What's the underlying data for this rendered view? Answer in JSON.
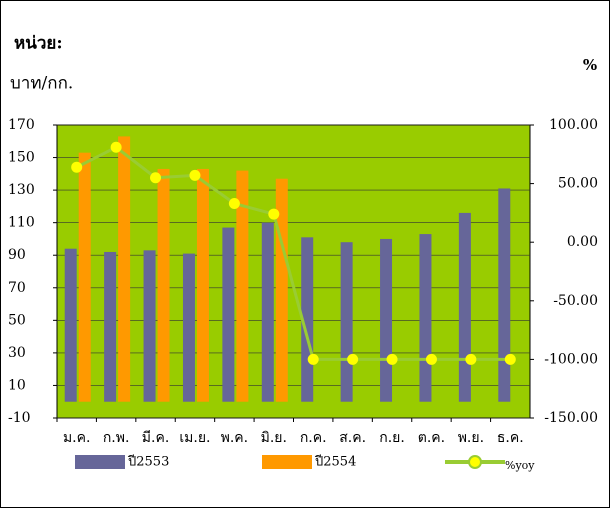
{
  "chart_data": {
    "type": "bar",
    "unit_label": "หน่วย:",
    "y_label": "บาท/กก.",
    "y2_label": "%",
    "categories": [
      "ม.ค.",
      "ก.พ.",
      "มี.ค.",
      "เม.ย.",
      "พ.ค.",
      "มิ.ย.",
      "ก.ค.",
      "ส.ค.",
      "ก.ย.",
      "ต.ค.",
      "พ.ย.",
      "ธ.ค."
    ],
    "series": [
      {
        "name": "ปี2553",
        "color": "#666699",
        "values": [
          94,
          92,
          93,
          91,
          107,
          110,
          101,
          98,
          100,
          103,
          116,
          131
        ]
      },
      {
        "name": "ปี2554",
        "color": "#ff9900",
        "values": [
          153,
          163,
          143,
          143,
          142,
          137,
          null,
          null,
          null,
          null,
          null,
          null
        ]
      },
      {
        "name": "%yoy",
        "color": "#99cc33",
        "marker_color": "#ffff00",
        "axis": "y2",
        "type": "line",
        "values": [
          64,
          81,
          55,
          57,
          33,
          24,
          -100,
          -100,
          -100,
          -100,
          -100,
          -100
        ]
      }
    ],
    "ylim": [
      -10,
      170
    ],
    "yticks": [
      -10,
      10,
      30,
      50,
      70,
      90,
      110,
      130,
      150,
      170
    ],
    "y2lim": [
      -150,
      100
    ],
    "y2ticks": [
      {
        "value": -150,
        "label": "-150.00"
      },
      {
        "value": -100,
        "label": "-100.00"
      },
      {
        "value": -50,
        "label": "-50.00"
      },
      {
        "value": 0,
        "label": "0.00"
      },
      {
        "value": 50,
        "label": "50.00"
      },
      {
        "value": 100,
        "label": "100.00"
      }
    ],
    "plot_background": "#99cc00",
    "grid": true
  }
}
